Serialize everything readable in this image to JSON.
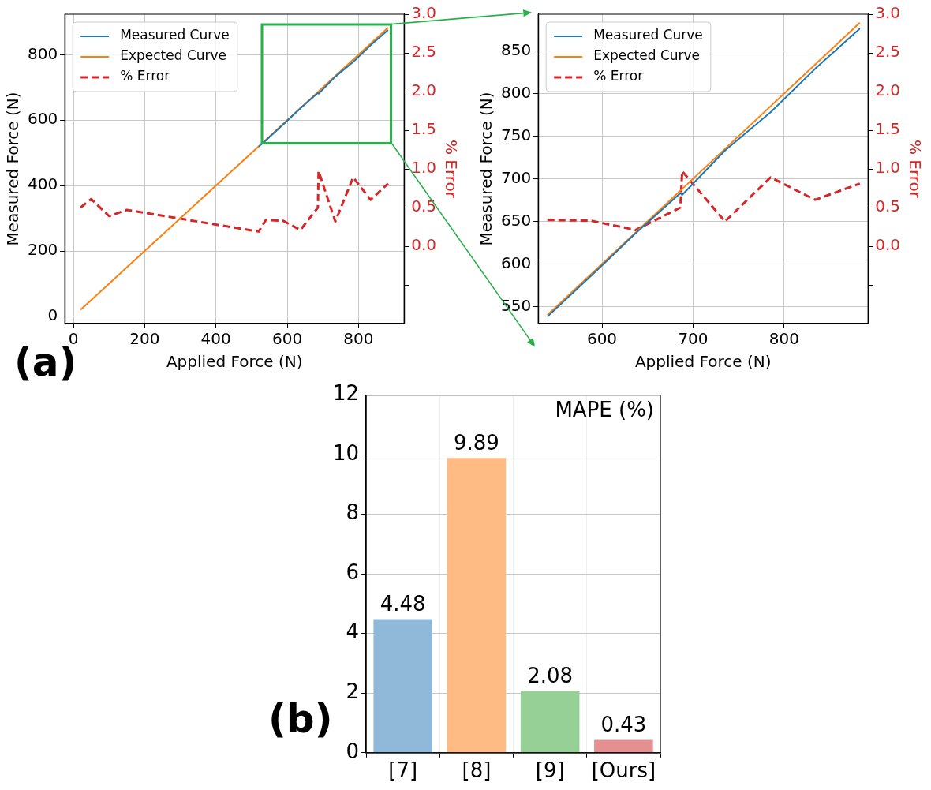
{
  "chart_data": [
    {
      "type": "line",
      "xlabel": "Applied Force (N)",
      "ylabel": "Measured Force (N)",
      "y2label": "% Error",
      "annotations": [
        "(a)"
      ],
      "x": [
        20,
        50,
        100,
        150,
        520,
        540,
        588,
        637,
        686,
        688,
        735,
        785,
        834,
        883
      ],
      "series": [
        {
          "name": "Measured Curve",
          "color": "#1f77b4",
          "values": [
            null,
            null,
            null,
            null,
            519,
            538,
            586,
            636,
            683,
            681,
            733,
            778,
            829,
            876
          ]
        },
        {
          "name": "Expected Curve",
          "color": "#ff7f0e",
          "values": [
            20,
            50,
            100,
            150,
            520,
            540,
            588,
            637,
            686,
            688,
            735,
            785,
            834,
            883
          ]
        },
        {
          "name": "% Error",
          "color": "#d62728",
          "axis": "y2",
          "line_style": "dashed",
          "values": [
            0.5,
            0.61,
            0.39,
            0.47,
            0.19,
            0.34,
            0.33,
            0.21,
            0.5,
            0.97,
            0.32,
            0.89,
            0.6,
            0.81
          ]
        }
      ],
      "xlim": [
        -24,
        928
      ],
      "ylim": [
        -22,
        924
      ],
      "y2lim": [
        -1,
        3
      ],
      "xticks": [
        0,
        200,
        400,
        600,
        800
      ],
      "yticks": [
        0,
        200,
        400,
        600,
        800
      ],
      "y2ticks": [
        {
          "value": -0.5,
          "label": null
        },
        {
          "value": 0,
          "label": "0.0"
        },
        {
          "value": 0.5,
          "label": "0.5"
        },
        {
          "value": 1,
          "label": "1.0"
        },
        {
          "value": 1.5,
          "label": "1.5"
        },
        {
          "value": 2,
          "label": "2.0"
        },
        {
          "value": 2.5,
          "label": "2.5"
        },
        {
          "value": 3,
          "label": "3.0"
        }
      ],
      "grid": true,
      "legend": "top left",
      "marker": "none"
    },
    {
      "type": "line",
      "xlabel": "Applied Force (N)",
      "ylabel": "Measured Force (N)",
      "y2label": "% Error",
      "x": [
        540,
        588,
        637,
        686,
        688,
        735,
        785,
        834,
        883
      ],
      "series": [
        {
          "name": "Measured Curve",
          "color": "#1f77b4",
          "values": [
            538,
            586,
            636,
            683,
            681,
            733,
            778,
            829,
            876
          ]
        },
        {
          "name": "Expected Curve",
          "color": "#ff7f0e",
          "values": [
            540,
            588,
            637,
            686,
            688,
            735,
            785,
            834,
            883
          ]
        },
        {
          "name": "% Error",
          "color": "#d62728",
          "axis": "y2",
          "line_style": "dashed",
          "values": [
            0.34,
            0.33,
            0.21,
            0.5,
            0.97,
            0.32,
            0.89,
            0.6,
            0.81
          ]
        }
      ],
      "xlim": [
        530,
        892
      ],
      "ylim": [
        530,
        893
      ],
      "y2lim": [
        -1,
        3
      ],
      "xticks": [
        600,
        700,
        800
      ],
      "yticks": [
        550,
        600,
        650,
        700,
        750,
        800,
        850
      ],
      "y2ticks": [
        {
          "value": -0.5,
          "label": null
        },
        {
          "value": 0,
          "label": "0.0"
        },
        {
          "value": 0.5,
          "label": "0.5"
        },
        {
          "value": 1,
          "label": "1.0"
        },
        {
          "value": 1.5,
          "label": "1.5"
        },
        {
          "value": 2,
          "label": "2.0"
        },
        {
          "value": 2.5,
          "label": "2.5"
        },
        {
          "value": 3,
          "label": "3.0"
        }
      ],
      "grid": true,
      "legend": "top left",
      "marker": "none"
    },
    {
      "type": "bar",
      "title": "MAPE (%)",
      "annotations": [
        "(b)"
      ],
      "categories": [
        "[7]",
        "[8]",
        "[9]",
        "[Ours]"
      ],
      "values": [
        4.48,
        9.89,
        2.08,
        0.43
      ],
      "colors": [
        "#8fb8d9",
        "#ffbb83",
        "#96d096",
        "#e68f90"
      ],
      "ylim": [
        0,
        12
      ],
      "yticks": [
        0,
        2,
        4,
        6,
        8,
        10,
        12
      ],
      "grid": true,
      "data_labels": true
    }
  ]
}
